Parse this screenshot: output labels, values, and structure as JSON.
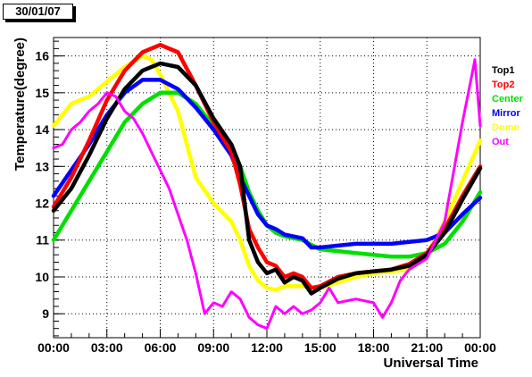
{
  "date_label": "30/01/07",
  "chart_data": {
    "type": "scatter",
    "xlabel": "Universal Time",
    "ylabel": "Temperature(degree)",
    "x_tick_labels": [
      "00:00",
      "03:00",
      "06:00",
      "09:00",
      "12:00",
      "15:00",
      "18:00",
      "21:00",
      "00:00"
    ],
    "x_ticks_hours": [
      0,
      3,
      6,
      9,
      12,
      15,
      18,
      21,
      24
    ],
    "xlim_hours": [
      0,
      24
    ],
    "y_ticks": [
      9,
      10,
      11,
      12,
      13,
      14,
      15,
      16
    ],
    "ylim": [
      8.35,
      16.5
    ],
    "grid": true,
    "legend_placement": "right",
    "series": [
      {
        "name": "Top1",
        "color": "#000000",
        "points": [
          [
            0,
            11.8
          ],
          [
            1,
            12.4
          ],
          [
            2,
            13.3
          ],
          [
            3,
            14.3
          ],
          [
            4,
            15.1
          ],
          [
            5,
            15.6
          ],
          [
            6,
            15.8
          ],
          [
            7,
            15.7
          ],
          [
            8,
            15.2
          ],
          [
            9,
            14.3
          ],
          [
            10,
            13.6
          ],
          [
            10.5,
            13.0
          ],
          [
            11,
            11.0
          ],
          [
            11.5,
            10.4
          ],
          [
            12,
            10.1
          ],
          [
            12.5,
            10.2
          ],
          [
            13,
            9.85
          ],
          [
            13.5,
            10.0
          ],
          [
            14,
            9.9
          ],
          [
            14.5,
            9.55
          ],
          [
            15,
            9.7
          ],
          [
            16,
            9.95
          ],
          [
            17,
            10.1
          ],
          [
            18,
            10.15
          ],
          [
            19,
            10.2
          ],
          [
            20,
            10.3
          ],
          [
            21,
            10.6
          ],
          [
            22,
            11.2
          ],
          [
            23,
            12.1
          ],
          [
            24,
            12.95
          ]
        ]
      },
      {
        "name": "Top2",
        "color": "#ff0000",
        "points": [
          [
            0,
            11.9
          ],
          [
            1,
            12.7
          ],
          [
            2,
            13.7
          ],
          [
            3,
            14.8
          ],
          [
            4,
            15.6
          ],
          [
            5,
            16.1
          ],
          [
            6,
            16.3
          ],
          [
            7,
            16.1
          ],
          [
            8,
            15.2
          ],
          [
            9,
            14.2
          ],
          [
            10,
            13.4
          ],
          [
            10.5,
            12.5
          ],
          [
            11,
            11.3
          ],
          [
            11.5,
            10.8
          ],
          [
            12,
            10.4
          ],
          [
            12.5,
            10.3
          ],
          [
            13,
            10.0
          ],
          [
            13.5,
            10.1
          ],
          [
            14,
            10.0
          ],
          [
            14.5,
            9.7
          ],
          [
            15,
            9.75
          ],
          [
            16,
            10.0
          ],
          [
            17,
            10.1
          ],
          [
            18,
            10.15
          ],
          [
            19,
            10.2
          ],
          [
            20,
            10.35
          ],
          [
            21,
            10.65
          ],
          [
            22,
            11.3
          ],
          [
            23,
            12.2
          ],
          [
            24,
            13.0
          ]
        ]
      },
      {
        "name": "Center",
        "color": "#00e000",
        "points": [
          [
            0,
            11.0
          ],
          [
            1,
            11.8
          ],
          [
            2,
            12.6
          ],
          [
            3,
            13.4
          ],
          [
            4,
            14.2
          ],
          [
            5,
            14.7
          ],
          [
            6,
            15.0
          ],
          [
            7,
            15.0
          ],
          [
            8,
            14.7
          ],
          [
            9,
            14.1
          ],
          [
            10,
            13.5
          ],
          [
            10.5,
            13.0
          ],
          [
            11,
            12.3
          ],
          [
            11.5,
            11.8
          ],
          [
            12,
            11.4
          ],
          [
            12.5,
            11.2
          ],
          [
            13,
            11.1
          ],
          [
            14,
            11.0
          ],
          [
            15,
            10.75
          ],
          [
            16,
            10.7
          ],
          [
            17,
            10.65
          ],
          [
            18,
            10.6
          ],
          [
            19,
            10.55
          ],
          [
            20,
            10.55
          ],
          [
            21,
            10.65
          ],
          [
            22,
            10.9
          ],
          [
            23,
            11.5
          ],
          [
            24,
            12.3
          ]
        ]
      },
      {
        "name": "Mirror",
        "color": "#0000ff",
        "points": [
          [
            0,
            12.2
          ],
          [
            1,
            12.9
          ],
          [
            2,
            13.6
          ],
          [
            3,
            14.4
          ],
          [
            4,
            15.0
          ],
          [
            5,
            15.35
          ],
          [
            6,
            15.35
          ],
          [
            7,
            15.1
          ],
          [
            8,
            14.6
          ],
          [
            9,
            14.0
          ],
          [
            10,
            13.3
          ],
          [
            10.5,
            12.7
          ],
          [
            11,
            12.2
          ],
          [
            11.5,
            11.7
          ],
          [
            12,
            11.4
          ],
          [
            12.5,
            11.3
          ],
          [
            13,
            11.15
          ],
          [
            14,
            11.05
          ],
          [
            14.5,
            10.8
          ],
          [
            15,
            10.8
          ],
          [
            16,
            10.85
          ],
          [
            17,
            10.9
          ],
          [
            18,
            10.9
          ],
          [
            19,
            10.9
          ],
          [
            20,
            10.95
          ],
          [
            21,
            11.0
          ],
          [
            22,
            11.2
          ],
          [
            23,
            11.7
          ],
          [
            24,
            12.15
          ]
        ]
      },
      {
        "name": "Dome",
        "color": "#ffff00",
        "points": [
          [
            0,
            14.1
          ],
          [
            1,
            14.7
          ],
          [
            2,
            14.9
          ],
          [
            3,
            15.3
          ],
          [
            4,
            15.7
          ],
          [
            5,
            16.0
          ],
          [
            5.5,
            15.9
          ],
          [
            6,
            15.5
          ],
          [
            7,
            14.5
          ],
          [
            8,
            12.7
          ],
          [
            9,
            12.0
          ],
          [
            10,
            11.5
          ],
          [
            10.5,
            11.0
          ],
          [
            11,
            10.3
          ],
          [
            11.5,
            9.9
          ],
          [
            12,
            9.7
          ],
          [
            12.5,
            9.65
          ],
          [
            13,
            9.75
          ],
          [
            14,
            9.75
          ],
          [
            15,
            9.7
          ],
          [
            16,
            9.85
          ],
          [
            17,
            10.0
          ],
          [
            18,
            10.1
          ],
          [
            19,
            10.15
          ],
          [
            20,
            10.2
          ],
          [
            21,
            10.6
          ],
          [
            22,
            11.5
          ],
          [
            23,
            12.6
          ],
          [
            24,
            13.7
          ]
        ]
      },
      {
        "name": "Out",
        "color": "#ff00ff",
        "points": [
          [
            0,
            13.5
          ],
          [
            0.5,
            13.6
          ],
          [
            1,
            14.0
          ],
          [
            1.5,
            14.2
          ],
          [
            2,
            14.5
          ],
          [
            2.5,
            14.7
          ],
          [
            3,
            15.0
          ],
          [
            3.5,
            14.9
          ],
          [
            4,
            14.5
          ],
          [
            4.5,
            14.3
          ],
          [
            5,
            13.9
          ],
          [
            5.5,
            13.4
          ],
          [
            6,
            12.9
          ],
          [
            6.5,
            12.4
          ],
          [
            7,
            11.7
          ],
          [
            7.5,
            11.0
          ],
          [
            8,
            10.1
          ],
          [
            8.5,
            9.0
          ],
          [
            9,
            9.3
          ],
          [
            9.5,
            9.2
          ],
          [
            10,
            9.6
          ],
          [
            10.5,
            9.4
          ],
          [
            11,
            8.9
          ],
          [
            11.5,
            8.7
          ],
          [
            12,
            8.6
          ],
          [
            12.5,
            9.2
          ],
          [
            13,
            9.0
          ],
          [
            13.5,
            9.2
          ],
          [
            14,
            9.0
          ],
          [
            14.5,
            9.1
          ],
          [
            15,
            9.3
          ],
          [
            15.5,
            9.7
          ],
          [
            16,
            9.3
          ],
          [
            17,
            9.4
          ],
          [
            18,
            9.3
          ],
          [
            18.5,
            8.9
          ],
          [
            19,
            9.3
          ],
          [
            19.5,
            9.9
          ],
          [
            20,
            10.2
          ],
          [
            21,
            10.5
          ],
          [
            22,
            11.5
          ],
          [
            23,
            14.2
          ],
          [
            23.5,
            15.4
          ],
          [
            23.7,
            15.9
          ],
          [
            24,
            14.1
          ]
        ]
      }
    ]
  }
}
